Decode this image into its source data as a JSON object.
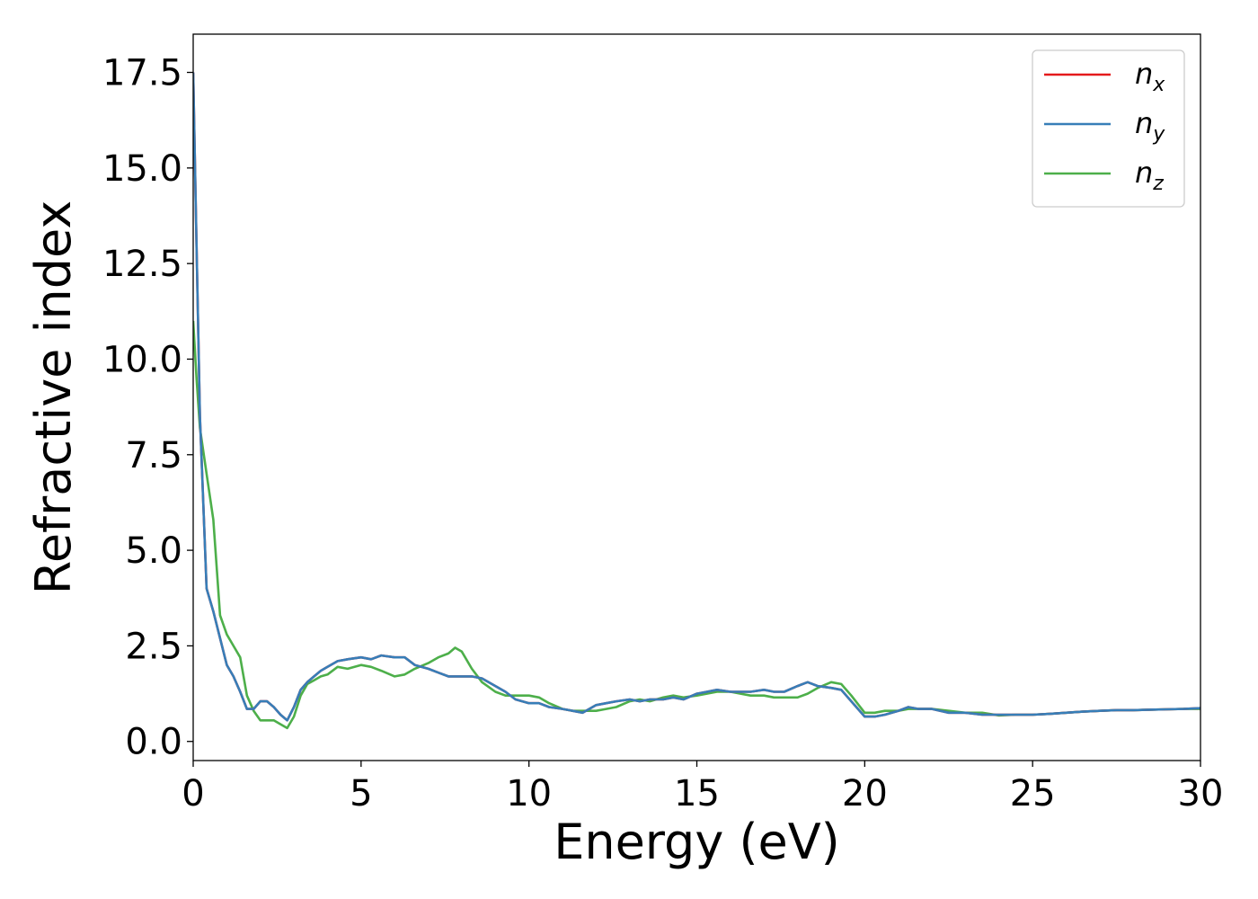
{
  "chart_data": {
    "type": "line",
    "xlabel": "Energy (eV)",
    "ylabel": "Refractive index",
    "xlim": [
      0,
      30
    ],
    "ylim": [
      -0.5,
      18.5
    ],
    "xticks": [
      0,
      5,
      10,
      15,
      20,
      25,
      30
    ],
    "xtick_labels": [
      "0",
      "5",
      "10",
      "15",
      "20",
      "25",
      "30"
    ],
    "yticks": [
      0,
      2.5,
      5,
      7.5,
      10,
      12.5,
      15,
      17.5
    ],
    "ytick_labels": [
      "0.0",
      "2.5",
      "5.0",
      "7.5",
      "10.0",
      "12.5",
      "15.0",
      "17.5"
    ],
    "grid": false,
    "legend_position": "top-right",
    "series": [
      {
        "name": "n",
        "subscript": "x",
        "color": "#e41a1c",
        "x": [
          0,
          0.1,
          0.2,
          0.4,
          0.6,
          0.8,
          1.0,
          1.2,
          1.4,
          1.6,
          1.8,
          2.0,
          2.2,
          2.4,
          2.6,
          2.8,
          3.0,
          3.2,
          3.4,
          3.6,
          3.8,
          4.0,
          4.3,
          4.6,
          5.0,
          5.3,
          5.6,
          6.0,
          6.3,
          6.6,
          7.0,
          7.3,
          7.6,
          8.0,
          8.3,
          8.6,
          9.0,
          9.3,
          9.6,
          10.0,
          10.3,
          10.6,
          11.0,
          11.3,
          11.6,
          12.0,
          12.3,
          12.6,
          13.0,
          13.3,
          13.6,
          14.0,
          14.3,
          14.6,
          15.0,
          15.3,
          15.6,
          16.0,
          16.3,
          16.6,
          17.0,
          17.3,
          17.6,
          18.0,
          18.3,
          18.6,
          19.0,
          19.3,
          19.6,
          20.0,
          20.3,
          20.6,
          21.0,
          21.3,
          21.6,
          22.0,
          22.5,
          23.0,
          23.5,
          24.0,
          24.5,
          25.0,
          25.5,
          26.0,
          26.5,
          27.0,
          27.5,
          28.0,
          28.5,
          29.0,
          29.5,
          30.0
        ],
        "y": [
          17.5,
          13.0,
          8.5,
          4.0,
          3.4,
          2.7,
          2.0,
          1.7,
          1.3,
          0.85,
          0.85,
          1.05,
          1.05,
          0.9,
          0.7,
          0.55,
          0.9,
          1.35,
          1.55,
          1.7,
          1.85,
          1.95,
          2.1,
          2.15,
          2.2,
          2.15,
          2.25,
          2.2,
          2.2,
          2.0,
          1.9,
          1.8,
          1.7,
          1.7,
          1.7,
          1.65,
          1.45,
          1.3,
          1.1,
          1.0,
          1.0,
          0.9,
          0.85,
          0.8,
          0.75,
          0.95,
          1.0,
          1.05,
          1.1,
          1.05,
          1.1,
          1.1,
          1.15,
          1.1,
          1.25,
          1.3,
          1.35,
          1.3,
          1.3,
          1.3,
          1.35,
          1.3,
          1.3,
          1.45,
          1.55,
          1.45,
          1.4,
          1.35,
          1.05,
          0.65,
          0.65,
          0.7,
          0.8,
          0.9,
          0.85,
          0.85,
          0.75,
          0.75,
          0.7,
          0.7,
          0.7,
          0.7,
          0.72,
          0.75,
          0.78,
          0.8,
          0.82,
          0.82,
          0.83,
          0.84,
          0.85,
          0.87
        ]
      },
      {
        "name": "n",
        "subscript": "y",
        "color": "#377eb8",
        "x": [
          0,
          0.1,
          0.2,
          0.4,
          0.6,
          0.8,
          1.0,
          1.2,
          1.4,
          1.6,
          1.8,
          2.0,
          2.2,
          2.4,
          2.6,
          2.8,
          3.0,
          3.2,
          3.4,
          3.6,
          3.8,
          4.0,
          4.3,
          4.6,
          5.0,
          5.3,
          5.6,
          6.0,
          6.3,
          6.6,
          7.0,
          7.3,
          7.6,
          8.0,
          8.3,
          8.6,
          9.0,
          9.3,
          9.6,
          10.0,
          10.3,
          10.6,
          11.0,
          11.3,
          11.6,
          12.0,
          12.3,
          12.6,
          13.0,
          13.3,
          13.6,
          14.0,
          14.3,
          14.6,
          15.0,
          15.3,
          15.6,
          16.0,
          16.3,
          16.6,
          17.0,
          17.3,
          17.6,
          18.0,
          18.3,
          18.6,
          19.0,
          19.3,
          19.6,
          20.0,
          20.3,
          20.6,
          21.0,
          21.3,
          21.6,
          22.0,
          22.5,
          23.0,
          23.5,
          24.0,
          24.5,
          25.0,
          25.5,
          26.0,
          26.5,
          27.0,
          27.5,
          28.0,
          28.5,
          29.0,
          29.5,
          30.0
        ],
        "y": [
          17.5,
          13.0,
          8.5,
          4.0,
          3.4,
          2.7,
          2.0,
          1.7,
          1.3,
          0.85,
          0.85,
          1.05,
          1.05,
          0.9,
          0.7,
          0.55,
          0.9,
          1.35,
          1.55,
          1.7,
          1.85,
          1.95,
          2.1,
          2.15,
          2.2,
          2.15,
          2.25,
          2.2,
          2.2,
          2.0,
          1.9,
          1.8,
          1.7,
          1.7,
          1.7,
          1.65,
          1.45,
          1.3,
          1.1,
          1.0,
          1.0,
          0.9,
          0.85,
          0.8,
          0.75,
          0.95,
          1.0,
          1.05,
          1.1,
          1.05,
          1.1,
          1.1,
          1.15,
          1.1,
          1.25,
          1.3,
          1.35,
          1.3,
          1.3,
          1.3,
          1.35,
          1.3,
          1.3,
          1.45,
          1.55,
          1.45,
          1.4,
          1.35,
          1.05,
          0.65,
          0.65,
          0.7,
          0.8,
          0.9,
          0.85,
          0.85,
          0.75,
          0.75,
          0.7,
          0.7,
          0.7,
          0.7,
          0.72,
          0.75,
          0.78,
          0.8,
          0.82,
          0.82,
          0.83,
          0.84,
          0.85,
          0.87
        ]
      },
      {
        "name": "n",
        "subscript": "z",
        "color": "#4daf4a",
        "x": [
          0,
          0.1,
          0.2,
          0.4,
          0.6,
          0.8,
          1.0,
          1.2,
          1.4,
          1.6,
          1.8,
          2.0,
          2.2,
          2.4,
          2.6,
          2.8,
          3.0,
          3.2,
          3.4,
          3.6,
          3.8,
          4.0,
          4.3,
          4.6,
          5.0,
          5.3,
          5.6,
          6.0,
          6.3,
          6.6,
          7.0,
          7.3,
          7.6,
          7.8,
          8.0,
          8.3,
          8.6,
          9.0,
          9.3,
          9.6,
          10.0,
          10.3,
          10.6,
          11.0,
          11.3,
          11.6,
          12.0,
          12.3,
          12.6,
          13.0,
          13.3,
          13.6,
          14.0,
          14.3,
          14.6,
          15.0,
          15.3,
          15.6,
          16.0,
          16.3,
          16.6,
          17.0,
          17.3,
          17.6,
          18.0,
          18.3,
          18.6,
          19.0,
          19.3,
          19.6,
          20.0,
          20.3,
          20.6,
          21.0,
          21.3,
          21.6,
          22.0,
          22.5,
          23.0,
          23.5,
          24.0,
          24.5,
          25.0,
          25.5,
          26.0,
          26.5,
          27.0,
          27.5,
          28.0,
          28.5,
          29.0,
          29.5,
          30.0
        ],
        "y": [
          11.0,
          9.5,
          8.2,
          7.0,
          5.8,
          3.3,
          2.8,
          2.5,
          2.2,
          1.2,
          0.8,
          0.55,
          0.55,
          0.55,
          0.45,
          0.35,
          0.65,
          1.2,
          1.5,
          1.6,
          1.7,
          1.75,
          1.95,
          1.9,
          2.0,
          1.95,
          1.85,
          1.7,
          1.75,
          1.9,
          2.05,
          2.2,
          2.3,
          2.45,
          2.35,
          1.9,
          1.55,
          1.3,
          1.2,
          1.2,
          1.2,
          1.15,
          1.0,
          0.85,
          0.8,
          0.8,
          0.8,
          0.85,
          0.9,
          1.05,
          1.1,
          1.05,
          1.15,
          1.2,
          1.15,
          1.2,
          1.25,
          1.3,
          1.3,
          1.25,
          1.2,
          1.2,
          1.15,
          1.15,
          1.15,
          1.25,
          1.4,
          1.55,
          1.5,
          1.2,
          0.75,
          0.75,
          0.8,
          0.8,
          0.85,
          0.85,
          0.85,
          0.8,
          0.75,
          0.75,
          0.68,
          0.7,
          0.7,
          0.72,
          0.75,
          0.78,
          0.8,
          0.82,
          0.82,
          0.83,
          0.84,
          0.85,
          0.85
        ]
      }
    ]
  }
}
